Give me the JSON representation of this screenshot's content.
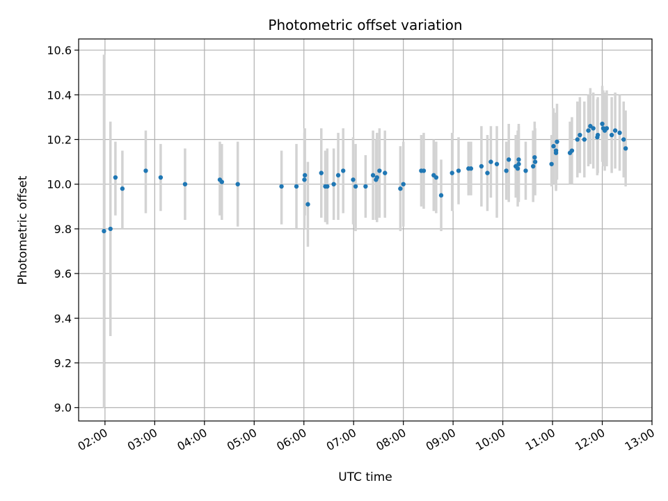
{
  "chart_data": {
    "type": "scatter",
    "title": "Photometric offset variation",
    "xlabel": "UTC time",
    "ylabel": "Photometric offset",
    "xlim": [
      1.47,
      13.0
    ],
    "ylim": [
      8.94,
      10.65
    ],
    "grid": true,
    "x_ticks": [
      {
        "value": 2,
        "label": "02:00"
      },
      {
        "value": 3,
        "label": "03:00"
      },
      {
        "value": 4,
        "label": "04:00"
      },
      {
        "value": 5,
        "label": "05:00"
      },
      {
        "value": 6,
        "label": "06:00"
      },
      {
        "value": 7,
        "label": "07:00"
      },
      {
        "value": 8,
        "label": "08:00"
      },
      {
        "value": 9,
        "label": "09:00"
      },
      {
        "value": 10,
        "label": "10:00"
      },
      {
        "value": 11,
        "label": "11:00"
      },
      {
        "value": 12,
        "label": "12:00"
      },
      {
        "value": 13,
        "label": "13:00"
      }
    ],
    "y_ticks": [
      {
        "value": 9.0,
        "label": "9.0"
      },
      {
        "value": 9.2,
        "label": "9.2"
      },
      {
        "value": 9.4,
        "label": "9.4"
      },
      {
        "value": 9.6,
        "label": "9.6"
      },
      {
        "value": 9.8,
        "label": "9.8"
      },
      {
        "value": 10.0,
        "label": "10.0"
      },
      {
        "value": 10.2,
        "label": "10.2"
      },
      {
        "value": 10.4,
        "label": "10.4"
      },
      {
        "value": 10.6,
        "label": "10.6"
      }
    ],
    "colors": {
      "points": "#1f77b4",
      "errorbars": "#d3d3d3",
      "grid": "#b0b0b0"
    },
    "series": [
      {
        "name": "offset",
        "x": [
          1.98,
          2.11,
          2.21,
          2.35,
          2.82,
          3.12,
          3.61,
          4.31,
          4.35,
          4.67,
          5.55,
          5.85,
          6.01,
          6.02,
          6.08,
          6.35,
          6.43,
          6.47,
          6.6,
          6.69,
          6.79,
          6.99,
          7.04,
          7.24,
          7.39,
          7.45,
          7.47,
          7.52,
          7.63,
          7.94,
          8.0,
          8.36,
          8.41,
          8.61,
          8.66,
          8.76,
          8.98,
          9.11,
          9.31,
          9.36,
          9.57,
          9.69,
          9.76,
          9.88,
          10.07,
          10.12,
          10.26,
          10.3,
          10.32,
          10.32,
          10.46,
          10.61,
          10.64,
          10.65,
          10.98,
          11.02,
          11.07,
          11.07,
          11.09,
          11.35,
          11.39,
          11.5,
          11.55,
          11.64,
          11.72,
          11.76,
          11.82,
          11.9,
          11.91,
          12.0,
          12.02,
          12.05,
          12.09,
          12.19,
          12.26,
          12.35,
          12.43,
          12.47
        ],
        "y": [
          9.79,
          9.8,
          10.03,
          9.98,
          10.06,
          10.03,
          10.0,
          10.02,
          10.01,
          10.0,
          9.99,
          9.99,
          10.02,
          10.04,
          9.91,
          10.05,
          9.99,
          9.99,
          10.0,
          10.04,
          10.06,
          10.02,
          9.99,
          9.99,
          10.04,
          10.02,
          10.03,
          10.06,
          10.05,
          9.98,
          10.0,
          10.06,
          10.06,
          10.04,
          10.03,
          9.95,
          10.05,
          10.06,
          10.07,
          10.07,
          10.08,
          10.05,
          10.1,
          10.09,
          10.06,
          10.11,
          10.08,
          10.07,
          10.09,
          10.11,
          10.06,
          10.08,
          10.12,
          10.1,
          10.09,
          10.17,
          10.14,
          10.15,
          10.19,
          10.14,
          10.15,
          10.2,
          10.22,
          10.2,
          10.24,
          10.26,
          10.25,
          10.21,
          10.22,
          10.27,
          10.25,
          10.24,
          10.25,
          10.22,
          10.24,
          10.23,
          10.2,
          10.16
        ],
        "yerr_low": [
          9.0,
          9.32,
          9.86,
          9.8,
          9.87,
          9.88,
          9.84,
          9.86,
          9.84,
          9.81,
          9.82,
          9.8,
          9.8,
          9.86,
          9.72,
          9.85,
          9.83,
          9.82,
          9.84,
          9.84,
          9.87,
          9.82,
          9.79,
          9.85,
          9.84,
          9.84,
          9.83,
          9.85,
          9.85,
          9.79,
          9.81,
          9.9,
          9.89,
          9.88,
          9.87,
          9.79,
          9.88,
          9.91,
          9.95,
          9.95,
          9.9,
          9.88,
          9.94,
          9.85,
          9.93,
          9.92,
          9.94,
          9.9,
          9.92,
          9.93,
          9.93,
          9.92,
          9.96,
          9.95,
          9.99,
          10.0,
          9.97,
          9.98,
          10.02,
          10.0,
          10.0,
          10.03,
          10.05,
          10.03,
          10.08,
          10.09,
          10.07,
          10.04,
          10.05,
          10.1,
          10.08,
          10.06,
          10.08,
          10.05,
          10.07,
          10.06,
          10.03,
          9.99
        ],
        "yerr_high": [
          10.58,
          10.28,
          10.19,
          10.15,
          10.24,
          10.18,
          10.16,
          10.19,
          10.18,
          10.19,
          10.15,
          10.18,
          10.23,
          10.25,
          10.1,
          10.25,
          10.15,
          10.16,
          10.16,
          10.23,
          10.25,
          10.21,
          10.18,
          10.13,
          10.24,
          10.2,
          10.23,
          10.25,
          10.24,
          10.17,
          10.19,
          10.22,
          10.23,
          10.2,
          10.19,
          10.11,
          10.23,
          10.21,
          10.19,
          10.19,
          10.26,
          10.22,
          10.26,
          10.26,
          10.19,
          10.27,
          10.22,
          10.24,
          10.26,
          10.27,
          10.19,
          10.24,
          10.28,
          10.25,
          10.22,
          10.34,
          10.31,
          10.32,
          10.36,
          10.28,
          10.3,
          10.37,
          10.39,
          10.37,
          10.4,
          10.43,
          10.41,
          10.38,
          10.39,
          10.44,
          10.42,
          10.41,
          10.42,
          10.39,
          10.41,
          10.4,
          10.37,
          10.33
        ]
      }
    ]
  }
}
